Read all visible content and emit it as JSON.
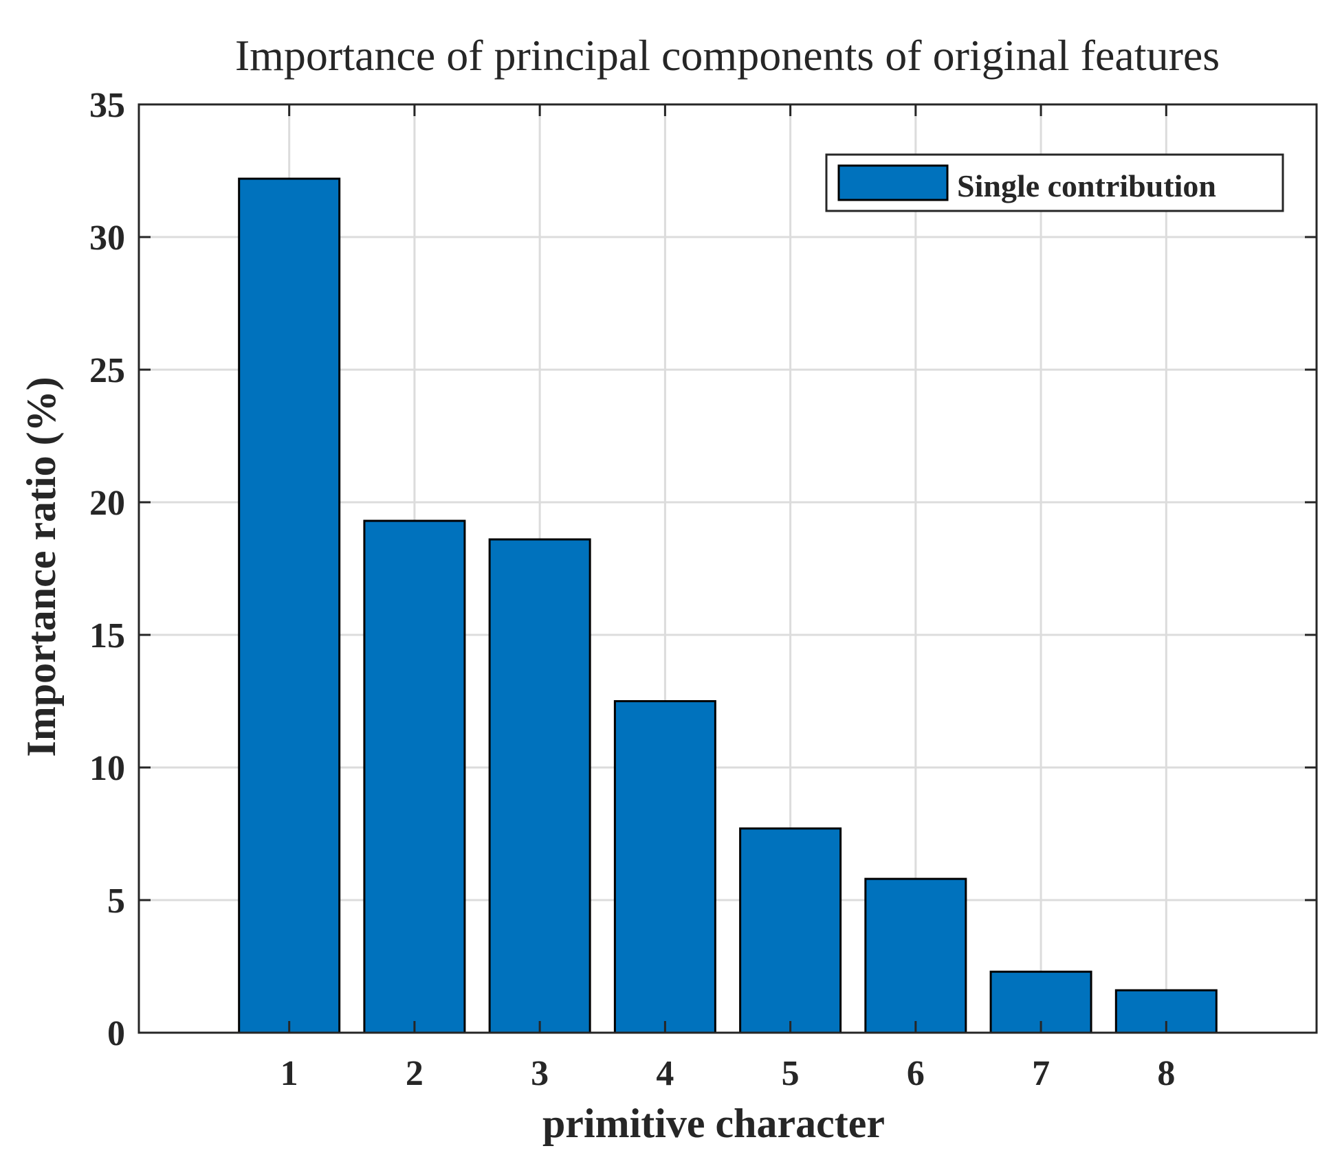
{
  "chart_data": {
    "type": "bar",
    "title": "Importance of principal components of original features",
    "xlabel": "primitive character",
    "ylabel": "Importance ratio (%)",
    "categories": [
      "1",
      "2",
      "3",
      "4",
      "5",
      "6",
      "7",
      "8"
    ],
    "series": [
      {
        "name": "Single contribution",
        "values": [
          32.2,
          19.3,
          18.6,
          12.5,
          7.7,
          5.8,
          2.3,
          1.6
        ],
        "color": "#0072BD"
      }
    ],
    "ylim": [
      0,
      35
    ],
    "yticks": [
      "0",
      "5",
      "10",
      "15",
      "20",
      "25",
      "30",
      "35"
    ],
    "xlim": [
      -0.2,
      9.2
    ],
    "grid": true,
    "legend_position": "top-right",
    "colors": {
      "bar": "#0072BD",
      "grid": "#dcdcdc",
      "axis": "#262626",
      "text": "#262626",
      "background": "#ffffff"
    }
  }
}
